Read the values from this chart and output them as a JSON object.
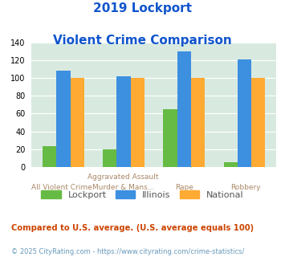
{
  "title_line1": "2019 Lockport",
  "title_line2": "Violent Crime Comparison",
  "cat_labels_top": [
    "",
    "Aggravated Assault",
    "",
    ""
  ],
  "cat_labels_bot": [
    "All Violent Crime",
    "Murder & Mans...",
    "Rape",
    "Robbery"
  ],
  "lockport": [
    23,
    20,
    65,
    5
  ],
  "illinois": [
    108,
    102,
    130,
    121
  ],
  "national": [
    100,
    100,
    100,
    100
  ],
  "lockport_color": "#66bb44",
  "illinois_color": "#3d8fe0",
  "national_color": "#ffaa33",
  "bg_color": "#d8eae0",
  "ylim": [
    0,
    140
  ],
  "yticks": [
    0,
    20,
    40,
    60,
    80,
    100,
    120,
    140
  ],
  "title_color": "#1155cc",
  "footnote1": "Compared to U.S. average. (U.S. average equals 100)",
  "footnote2": "© 2025 CityRating.com - https://www.cityrating.com/crime-statistics/",
  "footnote1_color": "#cc4400",
  "footnote2_color": "#6699bb"
}
